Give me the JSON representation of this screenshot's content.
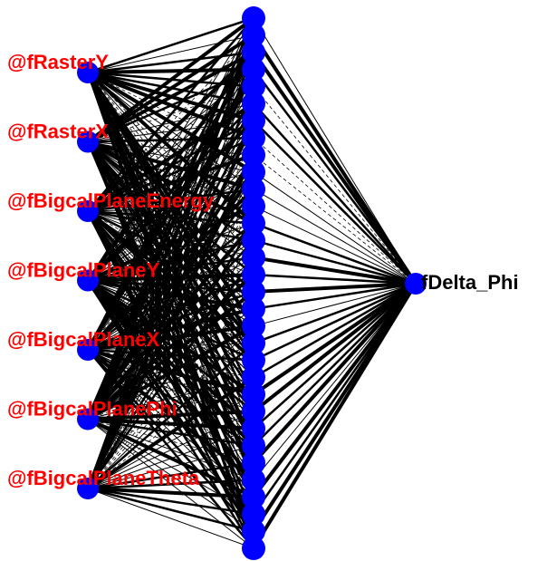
{
  "diagram": {
    "type": "neural-network",
    "input_layer": {
      "labels": [
        "@fRasterY",
        "@fRasterX",
        "@fBigcalPlaneEnergy",
        "@fBigcalPlaneY",
        "@fBigcalPlaneX",
        "@fBigcalPlanePhi",
        "@fBigcalPlaneTheta"
      ],
      "label_color": "#ff0000"
    },
    "hidden_layer": {
      "node_count": 32
    },
    "output_layer": {
      "labels": [
        "fDelta_Phi"
      ],
      "label_color": "#000000"
    },
    "node_color": "#0000ff",
    "edge_color": "#000000",
    "background": "#ffffff"
  }
}
